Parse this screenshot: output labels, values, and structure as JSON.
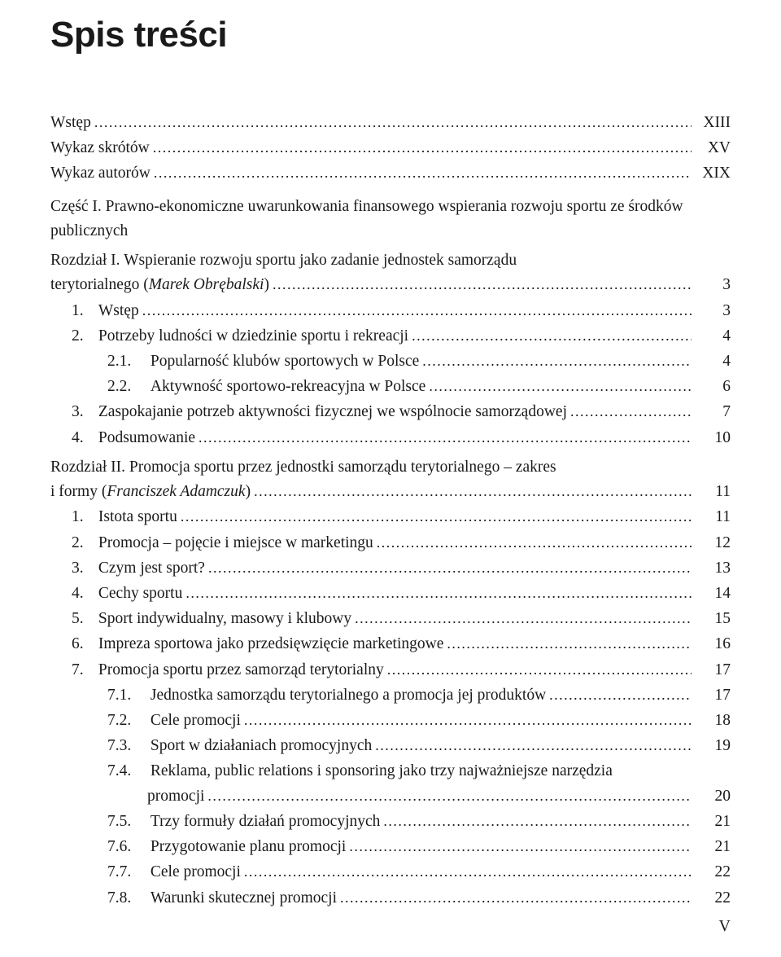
{
  "title": "Spis treści",
  "page_number": "V",
  "colors": {
    "text": "#1a1a1a",
    "bg": "#ffffff"
  },
  "typography": {
    "title_family": "Arial",
    "title_size_pt": 33,
    "body_family": "Georgia",
    "body_size_pt": 14.5
  },
  "entries": [
    {
      "kind": "row",
      "indent": 0,
      "label": "Wstęp",
      "page": "XIII"
    },
    {
      "kind": "row",
      "indent": 0,
      "label": "Wykaz skrótów",
      "page": "XV"
    },
    {
      "kind": "row",
      "indent": 0,
      "label": "Wykaz autorów",
      "page": "XIX"
    },
    {
      "kind": "block",
      "indent": 0,
      "gap": "m",
      "label_html": "Część I. Prawno-ekonomiczne uwarunkowania finansowego wspierania rozwoju sportu ze środków publicznych"
    },
    {
      "kind": "block",
      "indent": 0,
      "gap": "s",
      "label_html": "Rozdział I. Wspieranie rozwoju sportu jako zadanie jednostek samorządu"
    },
    {
      "kind": "row",
      "indent": 0,
      "label_html": "terytorialnego (<i>Marek Obrębalski</i>)",
      "page": "3"
    },
    {
      "kind": "row",
      "indent": 1,
      "num": "1.",
      "label": "Wstęp",
      "page": "3"
    },
    {
      "kind": "row",
      "indent": 1,
      "num": "2.",
      "label": "Potrzeby ludności w dziedzinie sportu i rekreacji",
      "page": "4"
    },
    {
      "kind": "row",
      "indent": 2,
      "num": "2.1.",
      "label": "Popularność klubów sportowych w Polsce",
      "page": "4"
    },
    {
      "kind": "row",
      "indent": 2,
      "num": "2.2.",
      "label": "Aktywność sportowo-rekreacyjna w Polsce",
      "page": "6"
    },
    {
      "kind": "row",
      "indent": 1,
      "num": "3.",
      "label": "Zaspokajanie potrzeb aktywności fizycznej we wspólnocie samorządowej",
      "page": "7"
    },
    {
      "kind": "row",
      "indent": 1,
      "num": "4.",
      "label": "Podsumowanie",
      "page": "10"
    },
    {
      "kind": "block",
      "indent": 0,
      "gap": "s",
      "label_html": "Rozdział II. Promocja sportu przez jednostki samorządu terytorialnego – zakres"
    },
    {
      "kind": "row",
      "indent": 0,
      "label_html": "i formy (<i>Franciszek Adamczuk</i>)",
      "page": "11"
    },
    {
      "kind": "row",
      "indent": 1,
      "num": "1.",
      "label": "Istota sportu",
      "page": "11"
    },
    {
      "kind": "row",
      "indent": 1,
      "num": "2.",
      "label": "Promocja – pojęcie i miejsce w marketingu",
      "page": "12"
    },
    {
      "kind": "row",
      "indent": 1,
      "num": "3.",
      "label": "Czym jest sport?",
      "page": "13"
    },
    {
      "kind": "row",
      "indent": 1,
      "num": "4.",
      "label": "Cechy sportu",
      "page": "14"
    },
    {
      "kind": "row",
      "indent": 1,
      "num": "5.",
      "label": "Sport indywidualny, masowy i klubowy",
      "page": "15"
    },
    {
      "kind": "row",
      "indent": 1,
      "num": "6.",
      "label": "Impreza sportowa jako przedsięwzięcie marketingowe",
      "page": "16"
    },
    {
      "kind": "row",
      "indent": 1,
      "num": "7.",
      "label": "Promocja sportu przez samorząd terytorialny",
      "page": "17"
    },
    {
      "kind": "row",
      "indent": 2,
      "num": "7.1.",
      "label": "Jednostka samorządu terytorialnego a promocja jej produktów",
      "page": "17"
    },
    {
      "kind": "row",
      "indent": 2,
      "num": "7.2.",
      "label": "Cele promocji",
      "page": "18"
    },
    {
      "kind": "row",
      "indent": 2,
      "num": "7.3.",
      "label": "Sport w działaniach promocyjnych",
      "page": "19"
    },
    {
      "kind": "block",
      "indent": 2,
      "num": "7.4.",
      "label_html": "Reklama, public relations i sponsoring jako trzy najważniejsze narzędzia"
    },
    {
      "kind": "row",
      "indent": "2c",
      "label": "promocji",
      "page": "20"
    },
    {
      "kind": "row",
      "indent": 2,
      "num": "7.5.",
      "label": "Trzy formuły działań promocyjnych",
      "page": "21"
    },
    {
      "kind": "row",
      "indent": 2,
      "num": "7.6.",
      "label": "Przygotowanie planu promocji",
      "page": "21"
    },
    {
      "kind": "row",
      "indent": 2,
      "num": "7.7.",
      "label": "Cele promocji",
      "page": "22"
    },
    {
      "kind": "row",
      "indent": 2,
      "num": "7.8.",
      "label": "Warunki skutecznej promocji",
      "page": "22"
    }
  ]
}
